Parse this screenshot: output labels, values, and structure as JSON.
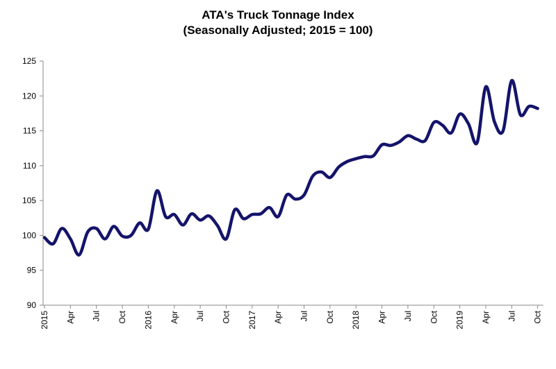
{
  "chart_data": {
    "type": "line",
    "title": "ATA's Truck Tonnage Index",
    "subtitle": "(Seasonally Adjusted; 2015 = 100)",
    "xlabel": "",
    "ylabel": "",
    "ylim": [
      90,
      125
    ],
    "yticks": [
      90,
      95,
      100,
      105,
      110,
      115,
      120,
      125
    ],
    "grid": false,
    "legend": "none",
    "line_color": "#14146b",
    "x_tick_labels": [
      "2015",
      "Apr",
      "Jul",
      "Oct",
      "2016",
      "Apr",
      "Jul",
      "Oct",
      "2017",
      "Apr",
      "Jul",
      "Oct",
      "2018",
      "Apr",
      "Jul",
      "Oct",
      "2019",
      "Apr",
      "Jul",
      "Oct"
    ],
    "x": [
      "2015-01",
      "2015-02",
      "2015-03",
      "2015-04",
      "2015-05",
      "2015-06",
      "2015-07",
      "2015-08",
      "2015-09",
      "2015-10",
      "2015-11",
      "2015-12",
      "2016-01",
      "2016-02",
      "2016-03",
      "2016-04",
      "2016-05",
      "2016-06",
      "2016-07",
      "2016-08",
      "2016-09",
      "2016-10",
      "2016-11",
      "2016-12",
      "2017-01",
      "2017-02",
      "2017-03",
      "2017-04",
      "2017-05",
      "2017-06",
      "2017-07",
      "2017-08",
      "2017-09",
      "2017-10",
      "2017-11",
      "2017-12",
      "2018-01",
      "2018-02",
      "2018-03",
      "2018-04",
      "2018-05",
      "2018-06",
      "2018-07",
      "2018-08",
      "2018-09",
      "2018-10",
      "2018-11",
      "2018-12",
      "2019-01",
      "2019-02",
      "2019-03",
      "2019-04",
      "2019-05",
      "2019-06",
      "2019-07",
      "2019-08",
      "2019-09",
      "2019-10"
    ],
    "values": [
      99.7,
      98.8,
      101.0,
      99.5,
      97.2,
      100.5,
      101.0,
      99.5,
      101.3,
      99.9,
      100.0,
      101.8,
      100.9,
      106.4,
      102.7,
      103.0,
      101.5,
      103.1,
      102.2,
      102.8,
      101.4,
      99.5,
      103.7,
      102.4,
      103.0,
      103.1,
      104.0,
      102.7,
      105.8,
      105.2,
      105.8,
      108.5,
      109.1,
      108.3,
      109.8,
      110.6,
      111.0,
      111.3,
      111.4,
      113.0,
      112.9,
      113.4,
      114.3,
      113.8,
      113.6,
      116.2,
      115.8,
      114.7,
      117.4,
      116.0,
      113.3,
      121.3,
      116.3,
      115.0,
      122.2,
      117.3,
      118.5,
      118.2
    ]
  }
}
